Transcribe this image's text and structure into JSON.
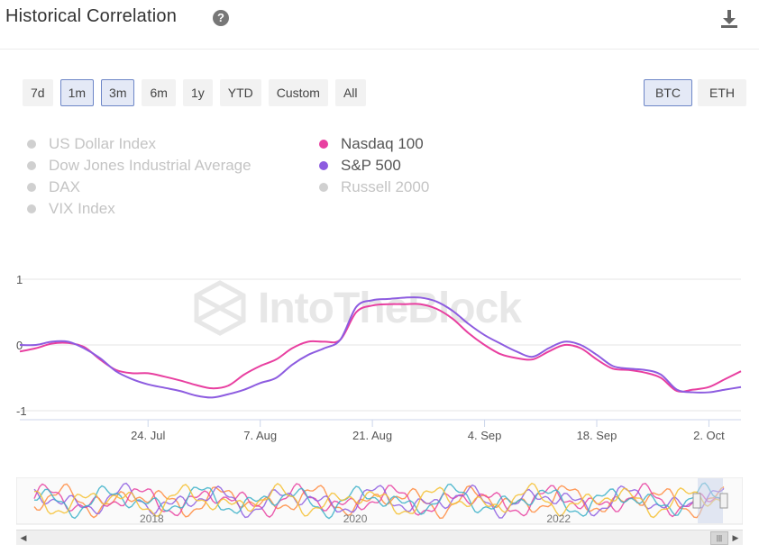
{
  "header": {
    "title": "Historical Correlation",
    "help_glyph": "?",
    "download_icon": "download-icon",
    "help_icon": "help-icon"
  },
  "ranges": [
    {
      "label": "7d",
      "active": false
    },
    {
      "label": "1m",
      "active": true
    },
    {
      "label": "3m",
      "active": true
    },
    {
      "label": "6m",
      "active": false
    },
    {
      "label": "1y",
      "active": false
    },
    {
      "label": "YTD",
      "active": false
    },
    {
      "label": "Custom",
      "active": false
    },
    {
      "label": "All",
      "active": false
    }
  ],
  "assets": [
    {
      "label": "BTC",
      "active": true
    },
    {
      "label": "ETH",
      "active": false
    }
  ],
  "legend": [
    {
      "label": "US Dollar Index",
      "enabled": false,
      "color": "#d0d0d0"
    },
    {
      "label": "Dow Jones Industrial Average",
      "enabled": false,
      "color": "#d0d0d0"
    },
    {
      "label": "DAX",
      "enabled": false,
      "color": "#d0d0d0"
    },
    {
      "label": "VIX Index",
      "enabled": false,
      "color": "#d0d0d0"
    },
    {
      "label": "Nasdaq 100",
      "enabled": true,
      "color": "#e83fa0"
    },
    {
      "label": "S&P 500",
      "enabled": true,
      "color": "#8d5ce0"
    },
    {
      "label": "Russell 2000",
      "enabled": false,
      "color": "#d0d0d0"
    }
  ],
  "watermark": "IntoTheBlock",
  "chart_data": {
    "type": "line",
    "ylim": [
      -1,
      1
    ],
    "yticks": [
      {
        "v": 1,
        "label": "1"
      },
      {
        "v": 0,
        "label": "0"
      },
      {
        "v": -1,
        "label": "-1"
      }
    ],
    "xlim": [
      0,
      90
    ],
    "xticks": [
      {
        "x": 16,
        "label": "24. Jul"
      },
      {
        "x": 30,
        "label": "7. Aug"
      },
      {
        "x": 44,
        "label": "21. Aug"
      },
      {
        "x": 58,
        "label": "4. Sep"
      },
      {
        "x": 72,
        "label": "18. Sep"
      },
      {
        "x": 86,
        "label": "2. Oct"
      }
    ],
    "x": [
      0,
      2,
      4,
      6,
      8,
      10,
      12,
      14,
      16,
      18,
      20,
      22,
      24,
      26,
      28,
      30,
      32,
      34,
      36,
      38,
      40,
      42,
      44,
      46,
      48,
      50,
      52,
      54,
      56,
      58,
      60,
      62,
      64,
      66,
      68,
      70,
      72,
      74,
      76,
      78,
      80,
      82,
      84,
      86,
      88,
      90
    ],
    "series": [
      {
        "name": "Nasdaq 100",
        "color": "#e83fa0",
        "values": [
          -0.1,
          -0.05,
          0.02,
          0.03,
          -0.03,
          -0.22,
          -0.38,
          -0.43,
          -0.43,
          -0.48,
          -0.54,
          -0.61,
          -0.66,
          -0.62,
          -0.45,
          -0.32,
          -0.22,
          -0.05,
          0.05,
          0.05,
          0.08,
          0.5,
          0.6,
          0.62,
          0.62,
          0.62,
          0.55,
          0.4,
          0.18,
          0.0,
          -0.14,
          -0.2,
          -0.22,
          -0.1,
          0.0,
          -0.05,
          -0.22,
          -0.36,
          -0.38,
          -0.42,
          -0.5,
          -0.7,
          -0.68,
          -0.64,
          -0.52,
          -0.4
        ]
      },
      {
        "name": "S&P 500",
        "color": "#8d5ce0",
        "values": [
          0.0,
          0.0,
          0.05,
          0.05,
          -0.05,
          -0.2,
          -0.4,
          -0.52,
          -0.6,
          -0.65,
          -0.7,
          -0.77,
          -0.8,
          -0.75,
          -0.68,
          -0.58,
          -0.5,
          -0.3,
          -0.15,
          -0.05,
          0.08,
          0.58,
          0.68,
          0.7,
          0.72,
          0.72,
          0.66,
          0.52,
          0.32,
          0.15,
          0.02,
          -0.1,
          -0.18,
          -0.05,
          0.05,
          0.0,
          -0.15,
          -0.32,
          -0.36,
          -0.38,
          -0.45,
          -0.68,
          -0.72,
          -0.72,
          -0.68,
          -0.64
        ]
      }
    ],
    "navigator": {
      "year_labels": [
        {
          "x": 0.17,
          "label": "2018"
        },
        {
          "x": 0.45,
          "label": "2020"
        },
        {
          "x": 0.73,
          "label": "2022"
        }
      ],
      "colors": [
        "#ff8a3d",
        "#e83fa0",
        "#8d5ce0",
        "#3bb0c8",
        "#f5c030"
      ]
    }
  }
}
